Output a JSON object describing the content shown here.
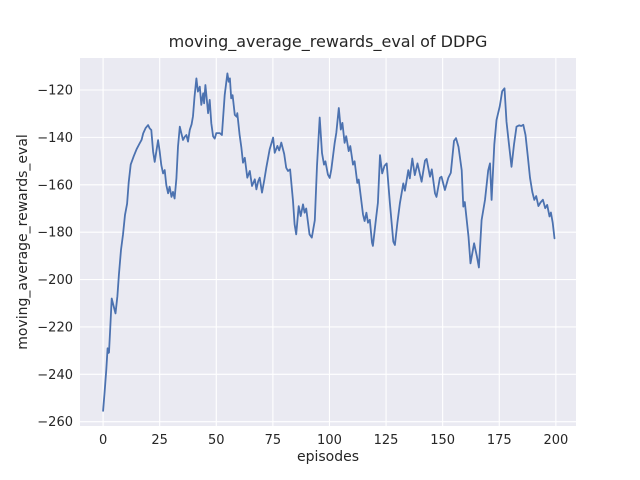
{
  "figure": {
    "title": "moving_average_rewards_eval of DDPG",
    "xlabel": "episodes",
    "ylabel": "moving_average_rewards_eval"
  },
  "colors": {
    "figure_bg": "#ffffff",
    "axes_bg": "#eaeaf2",
    "grid": "#ffffff",
    "line": "#4c72b0",
    "text": "#262626"
  },
  "chart_data": {
    "type": "line",
    "title": "moving_average_rewards_eval of DDPG",
    "xlabel": "episodes",
    "ylabel": "moving_average_rewards_eval",
    "legend": null,
    "grid": true,
    "xlim": [
      -10.2,
      208.9
    ],
    "ylim": [
      -261.8,
      -106.5
    ],
    "x_ticks": [
      {
        "label": "0",
        "value": 0
      },
      {
        "label": "25",
        "value": 25
      },
      {
        "label": "50",
        "value": 50
      },
      {
        "label": "75",
        "value": 75
      },
      {
        "label": "100",
        "value": 100
      },
      {
        "label": "125",
        "value": 125
      },
      {
        "label": "150",
        "value": 150
      },
      {
        "label": "175",
        "value": 175
      },
      {
        "label": "200",
        "value": 200
      }
    ],
    "y_ticks": [
      {
        "label": "−120",
        "value": -120
      },
      {
        "label": "−140",
        "value": -140
      },
      {
        "label": "−160",
        "value": -160
      },
      {
        "label": "−180",
        "value": -180
      },
      {
        "label": "−200",
        "value": -200
      },
      {
        "label": "−220",
        "value": -220
      },
      {
        "label": "−240",
        "value": -240
      },
      {
        "label": "−260",
        "value": -260
      }
    ],
    "series": [
      {
        "name": "moving_average_rewards_eval",
        "color": "#4c72b0",
        "points": [
          [
            0,
            -255.4
          ],
          [
            0.7,
            -247
          ],
          [
            1.4,
            -238
          ],
          [
            2,
            -229
          ],
          [
            2.3,
            -231
          ],
          [
            2.6,
            -230.8
          ],
          [
            3.2,
            -220
          ],
          [
            3.8,
            -208
          ],
          [
            4.6,
            -211
          ],
          [
            5.5,
            -214.3
          ],
          [
            6.3,
            -207
          ],
          [
            7,
            -198
          ],
          [
            7.9,
            -187.5
          ],
          [
            8.8,
            -181
          ],
          [
            9.7,
            -172.7
          ],
          [
            10.6,
            -168
          ],
          [
            11.3,
            -159
          ],
          [
            12.2,
            -151.5
          ],
          [
            13.5,
            -148
          ],
          [
            14.8,
            -145
          ],
          [
            16,
            -142.8
          ],
          [
            17,
            -141
          ],
          [
            17.7,
            -138.3
          ],
          [
            18.8,
            -136
          ],
          [
            19.9,
            -134.8
          ],
          [
            20.6,
            -136.2
          ],
          [
            21.3,
            -136.9
          ],
          [
            22.1,
            -146
          ],
          [
            22.8,
            -150.3
          ],
          [
            23.5,
            -146
          ],
          [
            24.3,
            -141.2
          ],
          [
            25,
            -146
          ],
          [
            25.7,
            -151.7
          ],
          [
            26.5,
            -155.2
          ],
          [
            27.2,
            -153.8
          ],
          [
            27.9,
            -160.1
          ],
          [
            28.7,
            -163.6
          ],
          [
            29.4,
            -160.8
          ],
          [
            30.2,
            -165.1
          ],
          [
            30.9,
            -163
          ],
          [
            31.6,
            -165.8
          ],
          [
            32.4,
            -157.3
          ],
          [
            33.1,
            -143.9
          ],
          [
            33.9,
            -135.5
          ],
          [
            34.6,
            -138.3
          ],
          [
            35.3,
            -141.1
          ],
          [
            36.1,
            -139.7
          ],
          [
            36.8,
            -139
          ],
          [
            37.5,
            -141.8
          ],
          [
            38.3,
            -136.8
          ],
          [
            39.1,
            -134.5
          ],
          [
            39.7,
            -131
          ],
          [
            40.4,
            -123
          ],
          [
            41.2,
            -115.1
          ],
          [
            41.9,
            -120.7
          ],
          [
            42.7,
            -118.6
          ],
          [
            43.4,
            -126.3
          ],
          [
            44.2,
            -121.4
          ],
          [
            44.6,
            -125.6
          ],
          [
            45.2,
            -117.9
          ],
          [
            46.4,
            -129.8
          ],
          [
            47.1,
            -124.2
          ],
          [
            47.8,
            -134
          ],
          [
            48.6,
            -139.6
          ],
          [
            49.3,
            -140.5
          ],
          [
            50,
            -138.2
          ],
          [
            51.5,
            -138.2
          ],
          [
            52.5,
            -139
          ],
          [
            53.7,
            -122.1
          ],
          [
            54.9,
            -113
          ],
          [
            55.5,
            -116.5
          ],
          [
            56,
            -115.1
          ],
          [
            56.6,
            -123.5
          ],
          [
            57.2,
            -122.2
          ],
          [
            58.2,
            -130.5
          ],
          [
            59,
            -131.3
          ],
          [
            59.3,
            -129.8
          ],
          [
            60.3,
            -138.9
          ],
          [
            61.1,
            -144.4
          ],
          [
            61.8,
            -150.7
          ],
          [
            62.6,
            -148.6
          ],
          [
            63.7,
            -157
          ],
          [
            64.8,
            -154.2
          ],
          [
            65.8,
            -160.5
          ],
          [
            67,
            -157.7
          ],
          [
            67.7,
            -161.9
          ],
          [
            68.5,
            -158.5
          ],
          [
            69.2,
            -157
          ],
          [
            70.2,
            -163.3
          ],
          [
            71.2,
            -158
          ],
          [
            72.1,
            -152.8
          ],
          [
            73.6,
            -145
          ],
          [
            75.1,
            -140.1
          ],
          [
            75.8,
            -146.5
          ],
          [
            77,
            -143.6
          ],
          [
            77.8,
            -145.5
          ],
          [
            78.7,
            -142.2
          ],
          [
            80,
            -147
          ],
          [
            80.9,
            -152.8
          ],
          [
            81.7,
            -154.2
          ],
          [
            82.6,
            -153.5
          ],
          [
            83.9,
            -166.8
          ],
          [
            84.6,
            -176.7
          ],
          [
            85.3,
            -180.9
          ],
          [
            86.4,
            -169
          ],
          [
            87.3,
            -173.2
          ],
          [
            88.3,
            -168.3
          ],
          [
            89,
            -171.8
          ],
          [
            89.7,
            -170
          ],
          [
            91.2,
            -180.9
          ],
          [
            92.2,
            -182.3
          ],
          [
            93.5,
            -175
          ],
          [
            94.5,
            -152
          ],
          [
            95.7,
            -131.6
          ],
          [
            96.7,
            -146.6
          ],
          [
            97.6,
            -151.5
          ],
          [
            98.2,
            -150.1
          ],
          [
            99.3,
            -155.7
          ],
          [
            100.1,
            -157.1
          ],
          [
            100.8,
            -153.6
          ],
          [
            102.3,
            -142.3
          ],
          [
            103,
            -138.1
          ],
          [
            104.1,
            -127.6
          ],
          [
            105,
            -136.7
          ],
          [
            105.7,
            -133.9
          ],
          [
            106.7,
            -142.3
          ],
          [
            107.4,
            -139.5
          ],
          [
            108.5,
            -145.8
          ],
          [
            109.2,
            -143.7
          ],
          [
            110.4,
            -151.5
          ],
          [
            111.1,
            -150.1
          ],
          [
            112.3,
            -159.2
          ],
          [
            112.9,
            -157.8
          ],
          [
            114.8,
            -172.5
          ],
          [
            115.5,
            -175.3
          ],
          [
            116.3,
            -171.8
          ],
          [
            117,
            -176
          ],
          [
            117.8,
            -174.8
          ],
          [
            118.8,
            -184.4
          ],
          [
            119.2,
            -185.8
          ],
          [
            120.7,
            -173.2
          ],
          [
            121.4,
            -167.6
          ],
          [
            122.3,
            -147.5
          ],
          [
            123.3,
            -155.2
          ],
          [
            124.3,
            -152
          ],
          [
            125.3,
            -151
          ],
          [
            126.7,
            -167.8
          ],
          [
            128.2,
            -184
          ],
          [
            128.9,
            -185.4
          ],
          [
            130,
            -176
          ],
          [
            131.1,
            -167.8
          ],
          [
            132.6,
            -159.4
          ],
          [
            133.3,
            -162.5
          ],
          [
            134.8,
            -153.8
          ],
          [
            135.5,
            -157.3
          ],
          [
            136.6,
            -148.9
          ],
          [
            137.7,
            -155.9
          ],
          [
            138.9,
            -151
          ],
          [
            140.7,
            -158.7
          ],
          [
            142.2,
            -149.8
          ],
          [
            142.9,
            -149.1
          ],
          [
            144.4,
            -156.6
          ],
          [
            145.2,
            -153.5
          ],
          [
            146.6,
            -163.6
          ],
          [
            147.3,
            -165.1
          ],
          [
            148.8,
            -157.1
          ],
          [
            149.5,
            -156.6
          ],
          [
            151,
            -162.2
          ],
          [
            152.5,
            -157.1
          ],
          [
            153.6,
            -155
          ],
          [
            155,
            -141.5
          ],
          [
            155.9,
            -140.3
          ],
          [
            157,
            -144
          ],
          [
            158.4,
            -153.9
          ],
          [
            159.1,
            -169.2
          ],
          [
            159.8,
            -167.3
          ],
          [
            161.4,
            -181.9
          ],
          [
            162.3,
            -193.2
          ],
          [
            163.9,
            -184.7
          ],
          [
            165.1,
            -190
          ],
          [
            166,
            -194.9
          ],
          [
            167.2,
            -174.9
          ],
          [
            168.7,
            -166.4
          ],
          [
            170.1,
            -153.9
          ],
          [
            170.9,
            -151
          ],
          [
            171.6,
            -166.4
          ],
          [
            172.8,
            -143
          ],
          [
            173.8,
            -132.7
          ],
          [
            175.2,
            -127
          ],
          [
            176.3,
            -120.5
          ],
          [
            177.3,
            -119.3
          ],
          [
            178.2,
            -133.4
          ],
          [
            179.3,
            -143
          ],
          [
            180.4,
            -152.4
          ],
          [
            181.5,
            -143
          ],
          [
            182.6,
            -135.5
          ],
          [
            183.8,
            -134.9
          ],
          [
            184.7,
            -135.2
          ],
          [
            185.6,
            -134.7
          ],
          [
            186.6,
            -139
          ],
          [
            187.6,
            -148
          ],
          [
            188.6,
            -157
          ],
          [
            189.6,
            -163
          ],
          [
            190.5,
            -166.4
          ],
          [
            191.3,
            -164.8
          ],
          [
            192.3,
            -169
          ],
          [
            193.2,
            -167.5
          ],
          [
            194.3,
            -166.3
          ],
          [
            195.3,
            -169.9
          ],
          [
            196.2,
            -168.5
          ],
          [
            197.2,
            -173.4
          ],
          [
            197.8,
            -171.7
          ],
          [
            198.6,
            -176
          ],
          [
            199.4,
            -182.6
          ]
        ]
      }
    ]
  }
}
